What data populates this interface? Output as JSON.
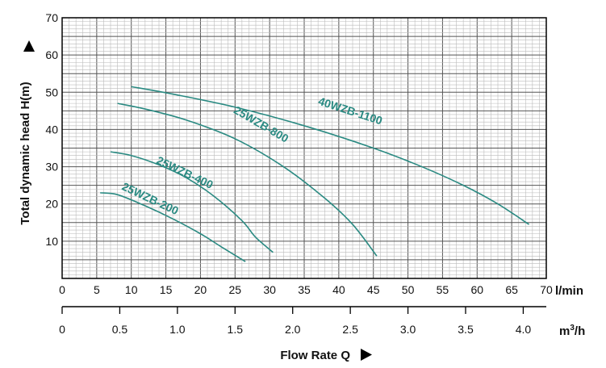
{
  "chart_data": {
    "type": "line",
    "ylabel": "Total dynamic head H(m)",
    "xlabel": "Flow Rate Q",
    "x_unit_primary": "l/min",
    "x_unit_secondary": "m³/h",
    "xlim": [
      0,
      70
    ],
    "ylim": [
      0,
      70
    ],
    "x_ticks": [
      0,
      5,
      10,
      15,
      20,
      25,
      30,
      35,
      40,
      45,
      50,
      55,
      60,
      65,
      70
    ],
    "y_ticks": [
      10,
      20,
      30,
      40,
      50,
      60,
      70
    ],
    "x_secondary_ticks": [
      "0",
      "0.5",
      "1.0",
      "1.5",
      "2.0",
      "2.5",
      "3.0",
      "3.5",
      "4.0"
    ],
    "grid": true,
    "series_color": "#2a8a82",
    "series": [
      {
        "name": "25WZB-200",
        "x": [
          5.5,
          8,
          12,
          16,
          20,
          23,
          26.5
        ],
        "y": [
          23,
          22.5,
          19.5,
          16,
          12,
          8.5,
          4.5
        ]
      },
      {
        "name": "25WZB-400",
        "x": [
          7,
          10,
          14,
          18,
          22,
          26,
          28,
          30.5
        ],
        "y": [
          34,
          33,
          30.5,
          27,
          22,
          15.5,
          11,
          7
        ]
      },
      {
        "name": "25WZB-800",
        "x": [
          8,
          12,
          18,
          25,
          32,
          38,
          42,
          45.5
        ],
        "y": [
          47,
          45.5,
          42.5,
          37.5,
          30,
          21.5,
          14.5,
          6
        ]
      },
      {
        "name": "40WZB-1100",
        "x": [
          10,
          16,
          25,
          35,
          45,
          52,
          58,
          63,
          67.5
        ],
        "y": [
          51.5,
          49.5,
          46,
          41,
          35,
          30,
          25,
          20,
          14.5
        ]
      }
    ]
  }
}
